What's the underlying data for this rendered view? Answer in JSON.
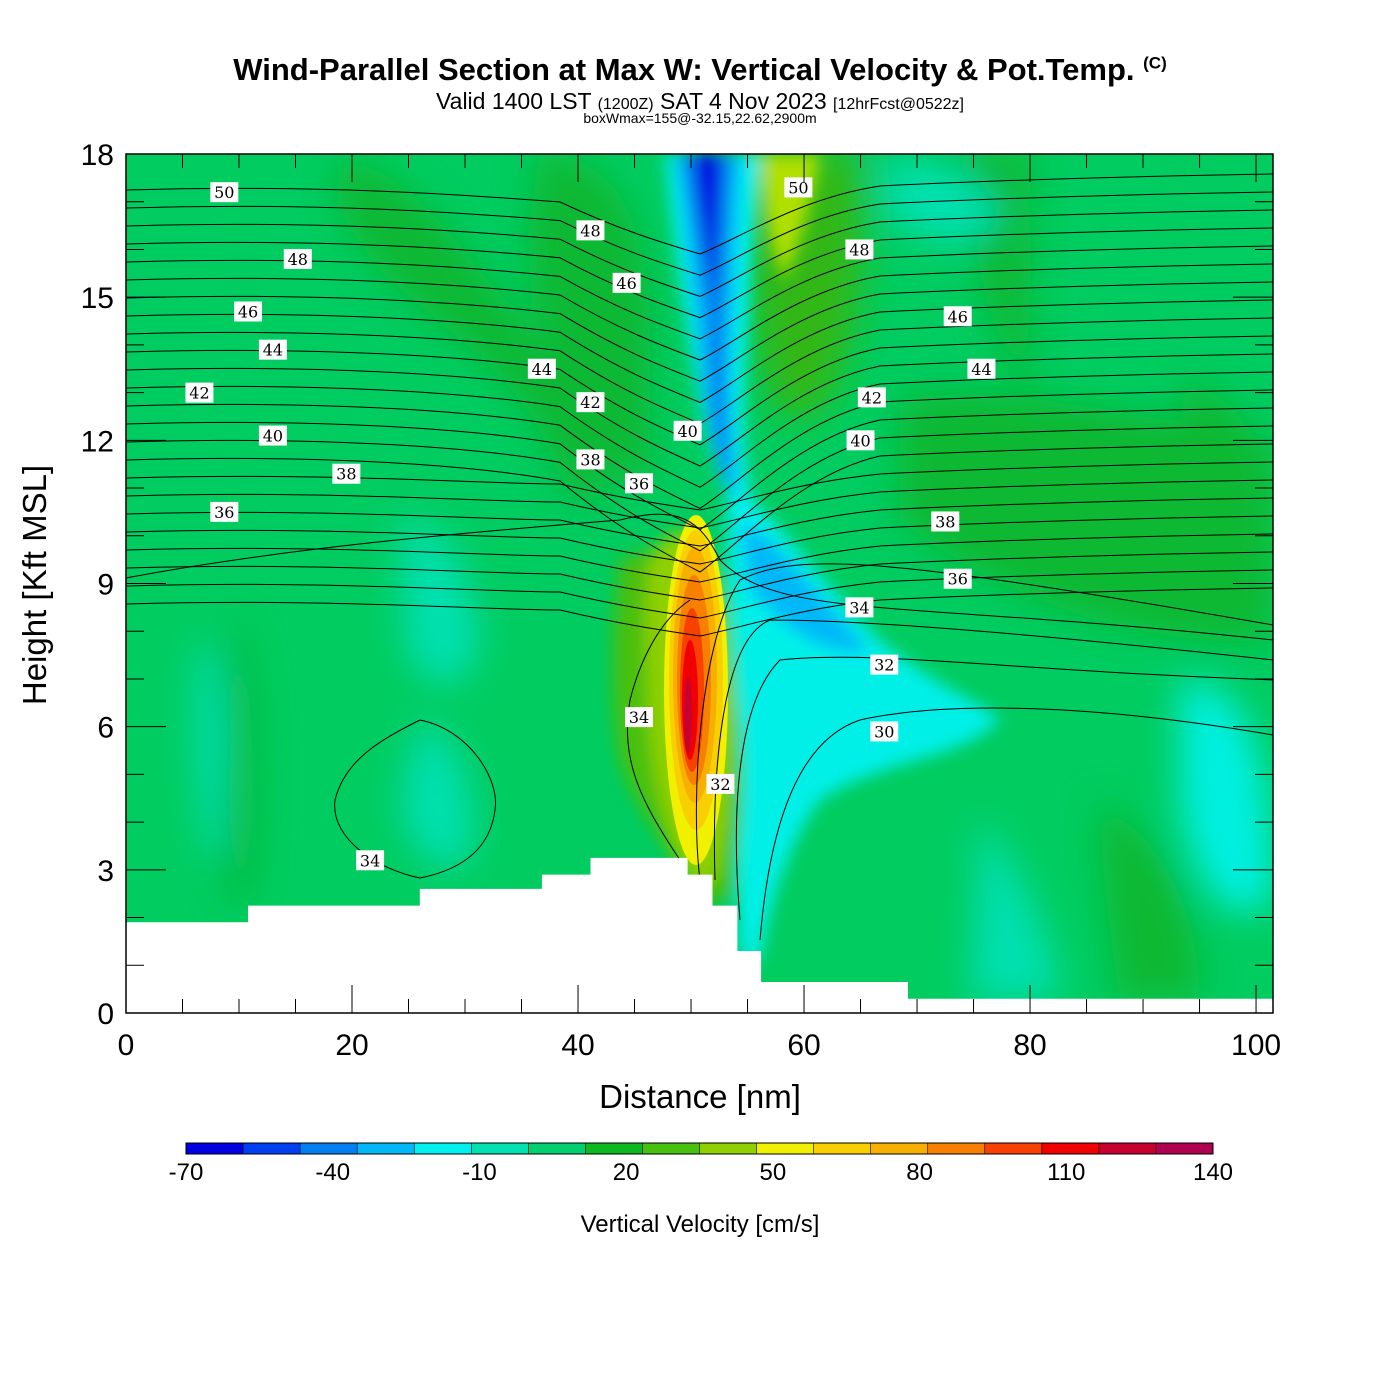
{
  "title": {
    "main": "Wind-Parallel Section at Max W: Vertical Velocity & Pot.Temp.",
    "copyright": "(C)",
    "valid": "Valid 1400 LST",
    "utc": "(1200Z)",
    "date": "SAT 4 Nov 2023",
    "forecast": "[12hrFcst@0522z]",
    "box": "boxWmax=155@-32.15,22.62,2900m"
  },
  "chart_data": {
    "type": "contour_cross_section",
    "xlabel": "Distance [nm]",
    "ylabel": "Height [Kft MSL]",
    "xlim": [
      0,
      101.5
    ],
    "ylim": [
      0,
      18
    ],
    "x_ticks": [
      "0",
      "20",
      "40",
      "60",
      "80",
      "100"
    ],
    "y_ticks": [
      "0",
      "3",
      "6",
      "9",
      "12",
      "15",
      "18"
    ],
    "colorbar": {
      "label": "Vertical Velocity [cm/s]",
      "tick_labels": [
        "-70",
        "-40",
        "-10",
        "20",
        "50",
        "80",
        "110",
        "140"
      ],
      "colors": [
        "#0000e0",
        "#0040f0",
        "#0080f0",
        "#00b8f8",
        "#00f0f0",
        "#00e0b0",
        "#00d070",
        "#10b820",
        "#48c010",
        "#90d000",
        "#f0f000",
        "#f8d000",
        "#f8b000",
        "#f88000",
        "#f84000",
        "#f00000",
        "#c80030",
        "#b00050"
      ]
    },
    "terrain_kft": [
      {
        "x": 0,
        "h": 1.9
      },
      {
        "x": 10.8,
        "h": 1.9
      },
      {
        "x": 10.8,
        "h": 2.25
      },
      {
        "x": 26,
        "h": 2.25
      },
      {
        "x": 26,
        "h": 2.6
      },
      {
        "x": 36.8,
        "h": 2.6
      },
      {
        "x": 36.8,
        "h": 2.9
      },
      {
        "x": 41.1,
        "h": 2.9
      },
      {
        "x": 41.1,
        "h": 3.25
      },
      {
        "x": 49.7,
        "h": 3.25
      },
      {
        "x": 49.7,
        "h": 2.9
      },
      {
        "x": 51.9,
        "h": 2.9
      },
      {
        "x": 51.9,
        "h": 2.25
      },
      {
        "x": 54.1,
        "h": 2.25
      },
      {
        "x": 54.1,
        "h": 1.3
      },
      {
        "x": 56.2,
        "h": 1.3
      },
      {
        "x": 56.2,
        "h": 0.65
      },
      {
        "x": 69.2,
        "h": 0.65
      },
      {
        "x": 69.2,
        "h": 0.3
      },
      {
        "x": 101.5,
        "h": 0.3
      }
    ],
    "w_features": [
      {
        "name": "updraft",
        "x": 50.1,
        "y": 7.4,
        "w_max": 155
      },
      {
        "name": "downdraft",
        "x": 52.5,
        "y": 16,
        "w_min": -70
      }
    ],
    "theta_labels": [
      {
        "v": "50",
        "x": 8.7,
        "y": 17.2
      },
      {
        "v": "48",
        "x": 15.2,
        "y": 15.8
      },
      {
        "v": "46",
        "x": 10.8,
        "y": 14.7
      },
      {
        "v": "44",
        "x": 13,
        "y": 13.9
      },
      {
        "v": "42",
        "x": 6.5,
        "y": 13
      },
      {
        "v": "40",
        "x": 13,
        "y": 12.1
      },
      {
        "v": "38",
        "x": 19.5,
        "y": 11.3
      },
      {
        "v": "36",
        "x": 8.7,
        "y": 10.5
      },
      {
        "v": "48",
        "x": 41.1,
        "y": 16.4
      },
      {
        "v": "46",
        "x": 44.3,
        "y": 15.3
      },
      {
        "v": "44",
        "x": 36.8,
        "y": 13.5
      },
      {
        "v": "42",
        "x": 41.1,
        "y": 12.8
      },
      {
        "v": "40",
        "x": 49.7,
        "y": 12.2
      },
      {
        "v": "38",
        "x": 41.1,
        "y": 11.6
      },
      {
        "v": "36",
        "x": 45.4,
        "y": 11.1
      },
      {
        "v": "50",
        "x": 59.5,
        "y": 17.3
      },
      {
        "v": "48",
        "x": 64.9,
        "y": 16
      },
      {
        "v": "46",
        "x": 73.6,
        "y": 14.6
      },
      {
        "v": "44",
        "x": 75.7,
        "y": 13.5
      },
      {
        "v": "42",
        "x": 66,
        "y": 12.9
      },
      {
        "v": "40",
        "x": 65,
        "y": 12
      },
      {
        "v": "38",
        "x": 72.5,
        "y": 10.3
      },
      {
        "v": "36",
        "x": 73.6,
        "y": 9.1
      },
      {
        "v": "34",
        "x": 64.9,
        "y": 8.5
      },
      {
        "v": "32",
        "x": 67.1,
        "y": 7.3
      },
      {
        "v": "30",
        "x": 67.1,
        "y": 5.9
      },
      {
        "v": "34",
        "x": 45.4,
        "y": 6.2
      },
      {
        "v": "32",
        "x": 52.6,
        "y": 4.8
      },
      {
        "v": "34",
        "x": 21.6,
        "y": 3.2
      }
    ]
  }
}
